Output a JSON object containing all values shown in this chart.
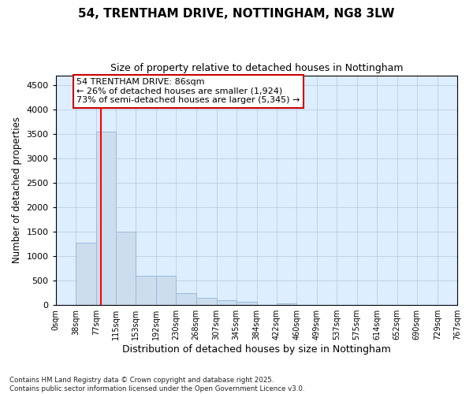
{
  "title": "54, TRENTHAM DRIVE, NOTTINGHAM, NG8 3LW",
  "subtitle": "Size of property relative to detached houses in Nottingham",
  "xlabel": "Distribution of detached houses by size in Nottingham",
  "ylabel": "Number of detached properties",
  "bar_color": "#ccdded",
  "bar_edge_color": "#99bbdd",
  "grid_color": "#b8cfe0",
  "background_color": "#ddeeff",
  "red_line_x": 86,
  "bin_edges": [
    0,
    38,
    77,
    115,
    153,
    192,
    230,
    268,
    307,
    345,
    384,
    422,
    460,
    499,
    537,
    575,
    614,
    652,
    690,
    729,
    767
  ],
  "values": [
    0,
    1280,
    3550,
    1500,
    600,
    600,
    250,
    150,
    100,
    60,
    0,
    30,
    0,
    0,
    0,
    0,
    0,
    0,
    0,
    0
  ],
  "tick_labels": [
    "0sqm",
    "38sqm",
    "77sqm",
    "115sqm",
    "153sqm",
    "192sqm",
    "230sqm",
    "268sqm",
    "307sqm",
    "345sqm",
    "384sqm",
    "422sqm",
    "460sqm",
    "499sqm",
    "537sqm",
    "575sqm",
    "614sqm",
    "652sqm",
    "690sqm",
    "729sqm",
    "767sqm"
  ],
  "annotation_text": "54 TRENTHAM DRIVE: 86sqm\n← 26% of detached houses are smaller (1,924)\n73% of semi-detached houses are larger (5,345) →",
  "annotation_box_color": "#ffffff",
  "annotation_box_edge": "#cc0000",
  "footer_text": "Contains HM Land Registry data © Crown copyright and database right 2025.\nContains public sector information licensed under the Open Government Licence v3.0.",
  "ylim": [
    0,
    4700
  ],
  "yticks": [
    0,
    500,
    1000,
    1500,
    2000,
    2500,
    3000,
    3500,
    4000,
    4500
  ]
}
